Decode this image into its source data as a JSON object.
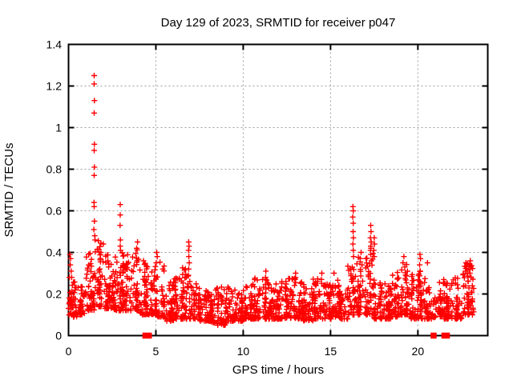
{
  "figure": {
    "background": "#ffffff"
  },
  "chart_data": {
    "type": "scatter",
    "title": "Day 129 of 2023, SRMTID for receiver p047",
    "xlabel": "GPS time / hours",
    "ylabel": "SRMTID / TECUs",
    "xlim": [
      0,
      24
    ],
    "ylim": [
      0,
      1.4
    ],
    "x_tick_labels": [
      "0",
      "5",
      "10",
      "15",
      "20"
    ],
    "x_tick_values": [
      0,
      5,
      10,
      15,
      20
    ],
    "y_tick_labels": [
      "0",
      "0.2",
      "0.4",
      "0.6",
      "0.8",
      "1",
      "1.2",
      "1.4"
    ],
    "y_tick_values": [
      0,
      0.2,
      0.4,
      0.6,
      0.8,
      1.0,
      1.2,
      1.4
    ],
    "grid": true,
    "legend": "none",
    "marker": "plus",
    "marker_color": "#ff0000",
    "zero_marker": "filled-square",
    "zero_marker_x": [
      4.4,
      4.52,
      4.6,
      20.9,
      21.52,
      21.66
    ],
    "feature_points": [
      [
        0.08,
        0.39
      ],
      [
        0.12,
        0.37
      ],
      [
        0.1,
        0.34
      ],
      [
        0.15,
        0.31
      ],
      [
        0.05,
        0.28
      ],
      [
        0.18,
        0.28
      ],
      [
        1.47,
        1.25
      ],
      [
        1.47,
        1.21
      ],
      [
        1.48,
        1.13
      ],
      [
        1.47,
        1.07
      ],
      [
        1.48,
        0.92
      ],
      [
        1.47,
        0.89
      ],
      [
        1.48,
        0.81
      ],
      [
        1.47,
        0.77
      ],
      [
        1.46,
        0.64
      ],
      [
        1.47,
        0.62
      ],
      [
        1.48,
        0.55
      ],
      [
        1.45,
        0.51
      ],
      [
        1.5,
        0.48
      ],
      [
        1.52,
        0.46
      ],
      [
        2.96,
        0.63
      ],
      [
        2.96,
        0.58
      ],
      [
        2.95,
        0.53
      ],
      [
        2.97,
        0.46
      ],
      [
        2.96,
        0.43
      ],
      [
        2.98,
        0.41
      ],
      [
        3.95,
        0.45
      ],
      [
        3.9,
        0.42
      ],
      [
        5.05,
        0.4
      ],
      [
        5.08,
        0.38
      ],
      [
        5.02,
        0.35
      ],
      [
        6.88,
        0.45
      ],
      [
        6.9,
        0.43
      ],
      [
        6.87,
        0.41
      ],
      [
        6.89,
        0.38
      ],
      [
        6.91,
        0.35
      ],
      [
        6.88,
        0.32
      ],
      [
        6.86,
        0.29
      ],
      [
        11.3,
        0.31
      ],
      [
        11.28,
        0.28
      ],
      [
        13.0,
        0.3
      ],
      [
        12.97,
        0.27
      ],
      [
        14.5,
        0.3
      ],
      [
        14.48,
        0.27
      ],
      [
        15.2,
        0.3
      ],
      [
        16.28,
        0.62
      ],
      [
        16.3,
        0.6
      ],
      [
        16.27,
        0.57
      ],
      [
        16.3,
        0.54
      ],
      [
        16.29,
        0.5
      ],
      [
        16.31,
        0.47
      ],
      [
        16.28,
        0.44
      ],
      [
        16.3,
        0.41
      ],
      [
        16.32,
        0.38
      ],
      [
        16.75,
        0.4
      ],
      [
        16.7,
        0.37
      ],
      [
        16.8,
        0.34
      ],
      [
        17.3,
        0.53
      ],
      [
        17.32,
        0.5
      ],
      [
        17.28,
        0.47
      ],
      [
        17.33,
        0.45
      ],
      [
        17.3,
        0.43
      ],
      [
        17.31,
        0.42
      ],
      [
        17.29,
        0.41
      ],
      [
        17.3,
        0.39
      ],
      [
        17.34,
        0.36
      ],
      [
        17.5,
        0.47
      ],
      [
        17.52,
        0.44
      ],
      [
        17.48,
        0.41
      ],
      [
        17.5,
        0.38
      ],
      [
        19.2,
        0.38
      ],
      [
        19.15,
        0.35
      ],
      [
        19.25,
        0.33
      ],
      [
        20.12,
        0.39
      ],
      [
        20.15,
        0.37
      ],
      [
        20.1,
        0.34
      ],
      [
        20.14,
        0.31
      ],
      [
        20.55,
        0.35
      ],
      [
        22.75,
        0.35
      ],
      [
        22.78,
        0.33
      ],
      [
        22.72,
        0.31
      ],
      [
        23.0,
        0.36
      ],
      [
        23.02,
        0.33
      ],
      [
        22.98,
        0.3
      ],
      [
        23.05,
        0.28
      ]
    ],
    "dense_band_bins": [
      [
        0.0,
        0.5,
        0.09,
        0.26,
        46
      ],
      [
        0.5,
        1.0,
        0.1,
        0.24,
        46
      ],
      [
        1.0,
        1.5,
        0.12,
        0.4,
        50
      ],
      [
        1.5,
        2.0,
        0.14,
        0.46,
        55
      ],
      [
        2.0,
        2.5,
        0.13,
        0.4,
        50
      ],
      [
        2.5,
        3.0,
        0.12,
        0.4,
        48
      ],
      [
        3.0,
        3.5,
        0.12,
        0.4,
        50
      ],
      [
        3.5,
        4.0,
        0.12,
        0.43,
        50
      ],
      [
        4.0,
        4.5,
        0.1,
        0.36,
        46
      ],
      [
        4.5,
        5.0,
        0.1,
        0.33,
        44
      ],
      [
        5.0,
        5.5,
        0.09,
        0.36,
        44
      ],
      [
        5.5,
        6.0,
        0.07,
        0.26,
        44
      ],
      [
        6.0,
        6.5,
        0.08,
        0.28,
        44
      ],
      [
        6.5,
        7.0,
        0.08,
        0.33,
        44
      ],
      [
        7.0,
        7.5,
        0.08,
        0.26,
        44
      ],
      [
        7.5,
        8.0,
        0.07,
        0.22,
        44
      ],
      [
        8.0,
        8.5,
        0.06,
        0.22,
        44
      ],
      [
        8.5,
        9.0,
        0.05,
        0.24,
        44
      ],
      [
        9.0,
        9.5,
        0.07,
        0.24,
        44
      ],
      [
        9.5,
        10.0,
        0.07,
        0.22,
        44
      ],
      [
        10.0,
        10.5,
        0.08,
        0.24,
        44
      ],
      [
        10.5,
        11.0,
        0.08,
        0.29,
        44
      ],
      [
        11.0,
        11.5,
        0.08,
        0.29,
        44
      ],
      [
        11.5,
        12.0,
        0.08,
        0.25,
        44
      ],
      [
        12.0,
        12.5,
        0.08,
        0.27,
        44
      ],
      [
        12.5,
        13.0,
        0.08,
        0.28,
        44
      ],
      [
        13.0,
        13.5,
        0.08,
        0.26,
        44
      ],
      [
        13.5,
        14.0,
        0.07,
        0.24,
        44
      ],
      [
        14.0,
        14.5,
        0.08,
        0.28,
        44
      ],
      [
        14.5,
        15.0,
        0.08,
        0.25,
        44
      ],
      [
        15.0,
        15.5,
        0.09,
        0.28,
        44
      ],
      [
        15.5,
        16.0,
        0.08,
        0.22,
        40
      ],
      [
        16.0,
        16.5,
        0.1,
        0.34,
        42
      ],
      [
        16.5,
        17.0,
        0.1,
        0.38,
        44
      ],
      [
        17.0,
        17.5,
        0.1,
        0.4,
        44
      ],
      [
        17.5,
        18.0,
        0.08,
        0.28,
        44
      ],
      [
        18.0,
        18.5,
        0.08,
        0.26,
        44
      ],
      [
        18.5,
        19.0,
        0.09,
        0.31,
        44
      ],
      [
        19.0,
        19.5,
        0.1,
        0.36,
        44
      ],
      [
        19.5,
        20.0,
        0.08,
        0.32,
        44
      ],
      [
        20.0,
        20.5,
        0.08,
        0.31,
        44
      ],
      [
        20.5,
        21.0,
        0.08,
        0.24,
        40
      ],
      [
        21.0,
        21.5,
        0.09,
        0.28,
        44
      ],
      [
        21.5,
        22.0,
        0.08,
        0.26,
        44
      ],
      [
        22.0,
        22.5,
        0.08,
        0.28,
        44
      ],
      [
        22.5,
        23.2,
        0.1,
        0.35,
        58
      ]
    ]
  },
  "colors": {
    "marker": "#ff0000",
    "grid": "#9e9e9e",
    "axis": "#000000",
    "background": "#ffffff"
  }
}
